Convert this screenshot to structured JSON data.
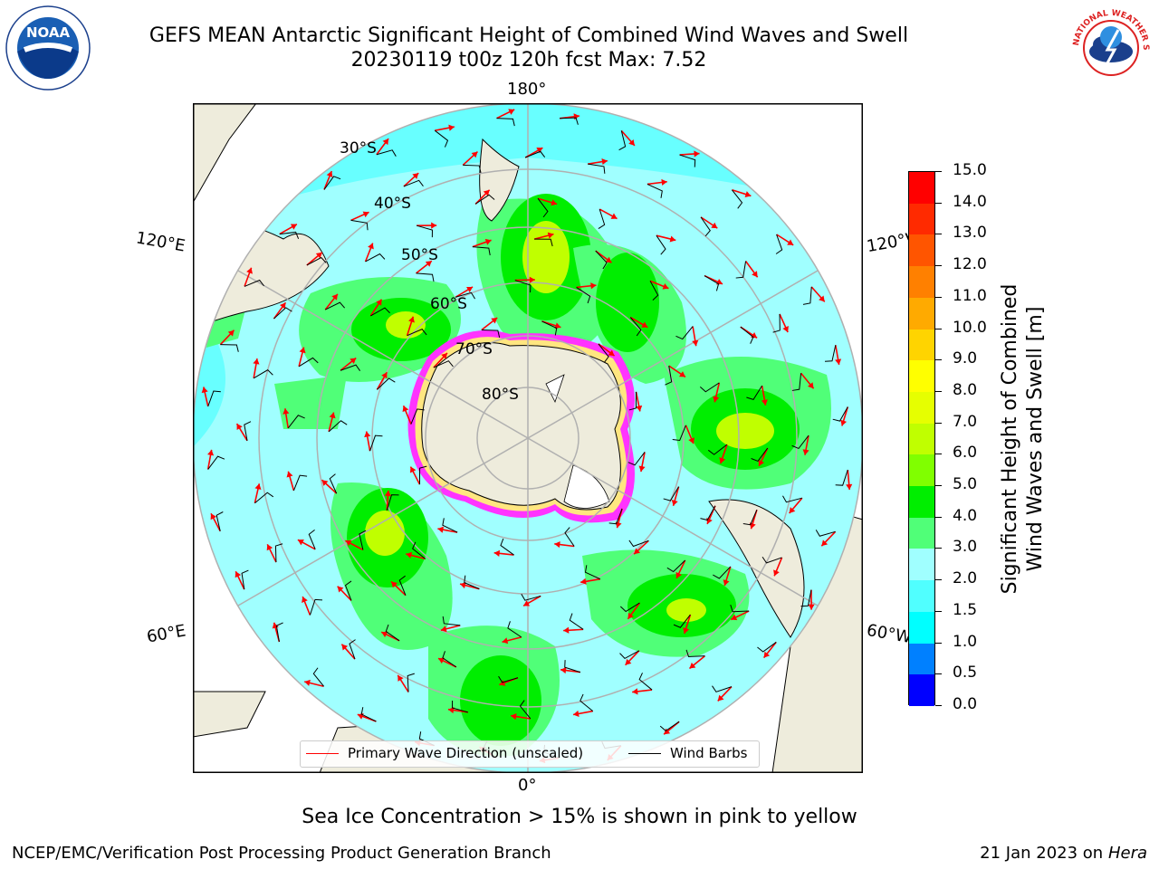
{
  "header": {
    "title_line1": "GEFS MEAN Antarctic Significant Height of Combined Wind Waves and Swell",
    "title_line2": "20230119 t00z 120h fcst   Max: 7.52"
  },
  "logos": {
    "left": {
      "name": "noaa-logo",
      "text": "NOAA"
    },
    "right": {
      "name": "nws-logo",
      "text": "NATIONAL WEATHER SERVICE"
    }
  },
  "map": {
    "projection": "south-polar-stereographic",
    "lon_labels": {
      "top": "180°",
      "bottom": "0°",
      "upper_left": "120°E",
      "upper_right": "120°W",
      "lower_left": "60°E",
      "lower_right": "60°W"
    },
    "lat_labels": [
      "30°S",
      "40°S",
      "50°S",
      "60°S",
      "70°S",
      "80°S"
    ],
    "colors": {
      "land": "#eeecdc",
      "ice_interior": "#ffffff",
      "coast": "#000000",
      "grid": "#b0b0b0",
      "wave_arrow": "#ff0000",
      "wind_barb": "#000000",
      "sea_ice_edge": "#ff33ff"
    }
  },
  "legend": {
    "wave_label": "Primary Wave Direction (unscaled)",
    "barb_label": "Wind Barbs"
  },
  "colorbar": {
    "label_line1": "Significant Height of Combined",
    "label_line2": "Wind Waves and Swell [m]",
    "ticks": [
      "15.0",
      "14.0",
      "13.0",
      "12.0",
      "11.0",
      "10.0",
      "9.0",
      "8.0",
      "7.0",
      "6.0",
      "5.0",
      "4.0",
      "3.0",
      "2.0",
      "1.5",
      "1.0",
      "0.5",
      "0.0"
    ],
    "colors_top_to_bottom": [
      "#ff0000",
      "#ff2a00",
      "#ff5500",
      "#ff8000",
      "#ffaa00",
      "#ffd400",
      "#ffff00",
      "#e6ff00",
      "#c0ff00",
      "#80ff00",
      "#00ee00",
      "#50ff78",
      "#a0ffff",
      "#50ffff",
      "#00ffff",
      "#0080ff",
      "#0000ff"
    ]
  },
  "caption": "Sea Ice Concentration > 15% is shown in pink to yellow",
  "footer": {
    "left": "NCEP/EMC/Verification Post Processing Product Generation Branch",
    "right_date": "21 Jan 2023 on",
    "right_host": "Hera"
  }
}
